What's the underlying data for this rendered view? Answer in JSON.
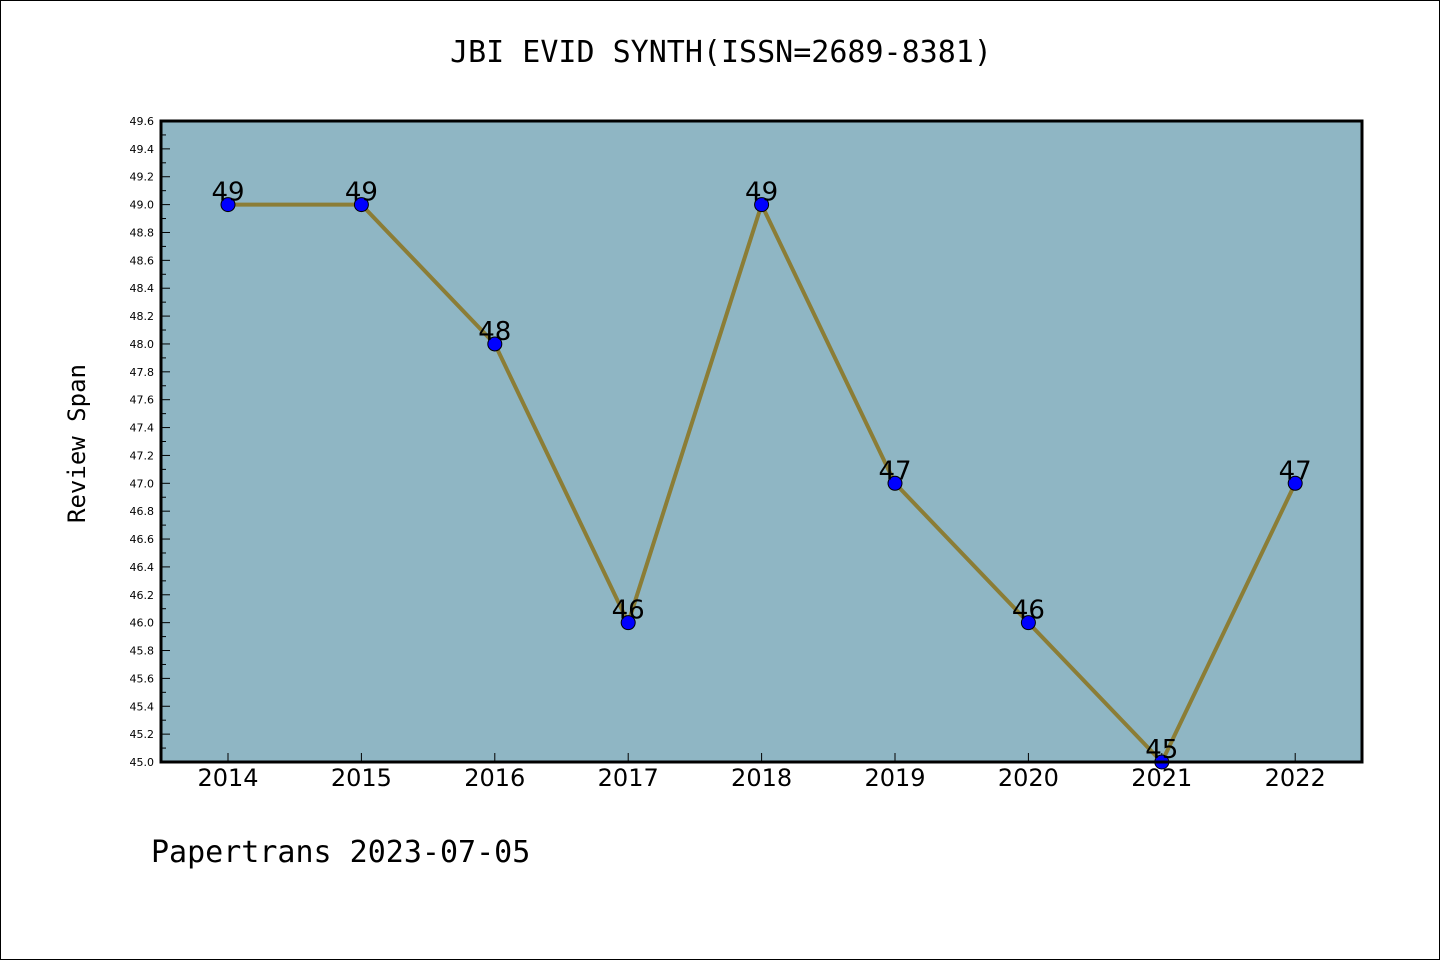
{
  "chart_data": {
    "type": "line",
    "title": "JBI EVID SYNTH(ISSN=2689-8381)",
    "xlabel": "",
    "ylabel": "Review Span",
    "categories": [
      "2014",
      "2015",
      "2016",
      "2017",
      "2018",
      "2019",
      "2020",
      "2021",
      "2022"
    ],
    "series": [
      {
        "values": [
          49,
          49,
          48,
          46,
          49,
          47,
          46,
          45,
          47
        ]
      }
    ],
    "data_labels": [
      "49",
      "49",
      "48",
      "46",
      "49",
      "47",
      "46",
      "45",
      "47"
    ],
    "ylim": [
      45.0,
      49.6
    ],
    "yticks": [
      "45.0",
      "45.2",
      "45.4",
      "45.6",
      "45.8",
      "46.0",
      "46.2",
      "46.4",
      "46.6",
      "46.8",
      "47.0",
      "47.2",
      "47.4",
      "47.6",
      "47.8",
      "48.0",
      "48.2",
      "48.4",
      "48.6",
      "48.8",
      "49.0",
      "49.2",
      "49.4",
      "49.6"
    ],
    "grid": false,
    "legend": "none",
    "colors": {
      "plot_background": "#8fb6c4",
      "line": "#8b7d36",
      "marker": "#0000ff"
    }
  },
  "footer": "Papertrans 2023-07-05"
}
